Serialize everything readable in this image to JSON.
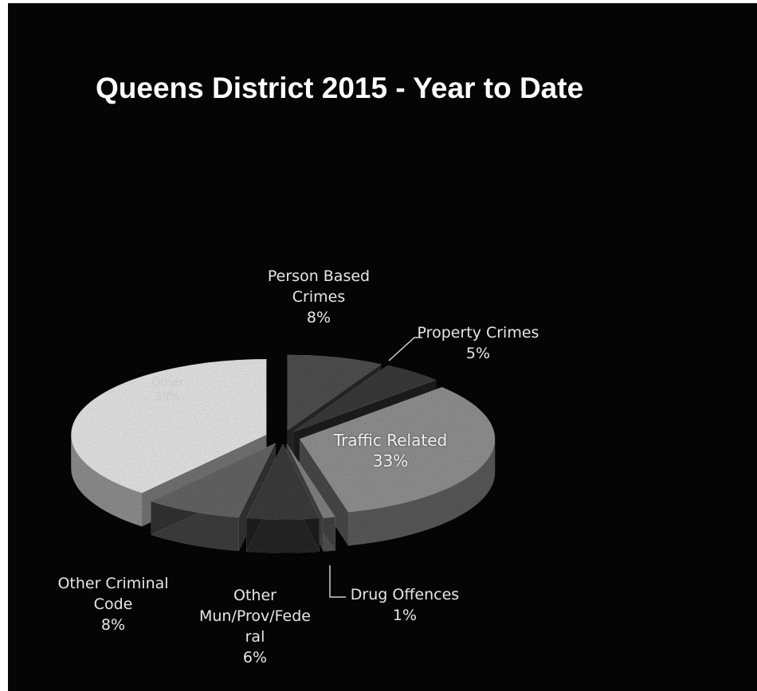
{
  "chart_data": {
    "type": "pie",
    "title": "Queens District 2015 - Year to Date",
    "three_d": true,
    "exploded": true,
    "slices": [
      {
        "label": [
          "Person Based",
          "Crimes"
        ],
        "value": 8,
        "display": "8%",
        "color": "#545454",
        "label_inside": false
      },
      {
        "label": [
          "Property Crimes"
        ],
        "value": 5,
        "display": "5%",
        "color": "#3e3e3e",
        "label_inside": false
      },
      {
        "label": [
          "Traffic Related"
        ],
        "value": 33,
        "display": "33%",
        "color": "#9a9a9a",
        "label_inside": true
      },
      {
        "label": [
          "Drug Offences"
        ],
        "value": 1,
        "display": "1%",
        "color": "#8a8a8a",
        "label_inside": false
      },
      {
        "label": [
          "Other",
          "Mun/Prov/Fede",
          "ral"
        ],
        "value": 6,
        "display": "6%",
        "color": "#404040",
        "label_inside": false
      },
      {
        "label": [
          "Other Criminal",
          "Code"
        ],
        "value": 8,
        "display": "8%",
        "color": "#6b6b6b",
        "label_inside": false
      },
      {
        "label": [
          "Other"
        ],
        "value": 39,
        "display": "39%",
        "color": "#f4f4f4",
        "label_inside": true
      }
    ]
  }
}
